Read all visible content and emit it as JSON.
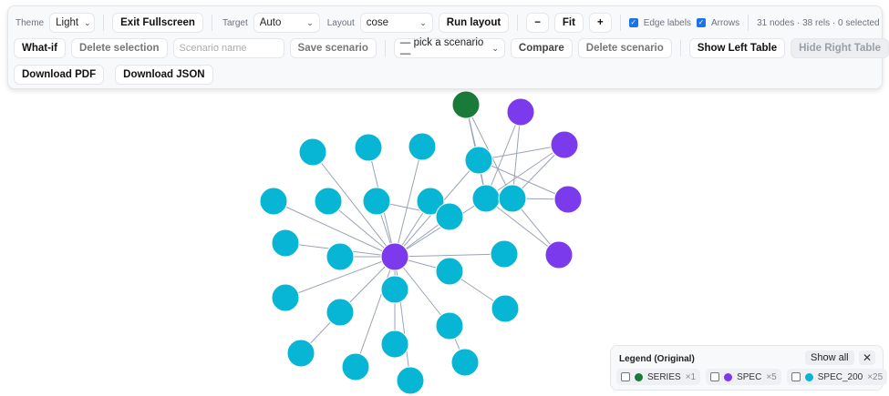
{
  "toolbar": {
    "theme_label": "Theme",
    "theme_value": "Light",
    "exit_fullscreen": "Exit Fullscreen",
    "target_label": "Target",
    "target_value": "Auto",
    "layout_label": "Layout",
    "layout_value": "cose",
    "run_layout": "Run layout",
    "zoom_out": "−",
    "fit": "Fit",
    "zoom_in": "+",
    "edge_labels": "Edge labels",
    "edge_labels_checked": true,
    "arrows": "Arrows",
    "arrows_checked": true,
    "status": "31 nodes · 38 rels · 0 selected",
    "what_if": "What-if",
    "delete_selection": "Delete selection",
    "scenario_placeholder": "Scenario name",
    "save_scenario": "Save scenario",
    "scenario_select": "— pick a scenario —",
    "compare": "Compare",
    "delete_scenario": "Delete scenario",
    "show_left_table": "Show Left Table",
    "hide_right_table": "Hide Right Table",
    "download_pdf": "Download PDF",
    "download_json": "Download JSON"
  },
  "legend": {
    "title": "Legend (Original)",
    "show_all": "Show all",
    "close": "✕",
    "items": [
      {
        "label": "SERIES",
        "count": "×1",
        "color": "#1a7a3a"
      },
      {
        "label": "SPEC",
        "count": "×5",
        "color": "#7c3aed"
      },
      {
        "label": "SPEC_200",
        "count": "×25",
        "color": "#06b6d4"
      }
    ]
  },
  "colors": {
    "series": "#1a7a3a",
    "spec": "#7c3aed",
    "spec_200": "#06b6d4",
    "edge": "#9aa3b5"
  }
}
